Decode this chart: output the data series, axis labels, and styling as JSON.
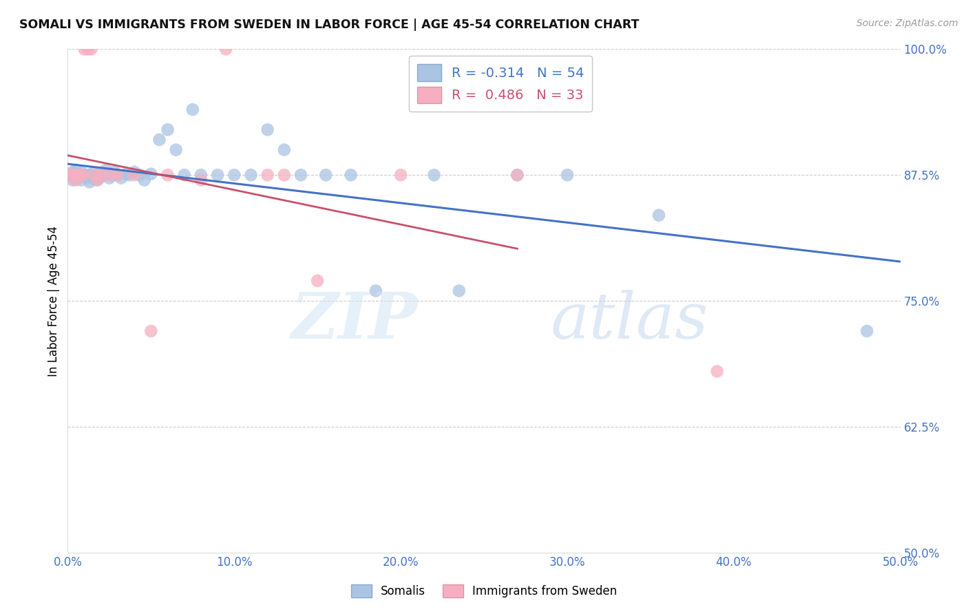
{
  "title": "SOMALI VS IMMIGRANTS FROM SWEDEN IN LABOR FORCE | AGE 45-54 CORRELATION CHART",
  "source": "Source: ZipAtlas.com",
  "ylabel": "In Labor Force | Age 45-54",
  "xlabel_ticks": [
    "0.0%",
    "10.0%",
    "20.0%",
    "30.0%",
    "40.0%",
    "50.0%"
  ],
  "xlabel_vals": [
    0.0,
    0.1,
    0.2,
    0.3,
    0.4,
    0.5
  ],
  "ylabel_ticks": [
    "50.0%",
    "62.5%",
    "75.0%",
    "87.5%",
    "100.0%"
  ],
  "ylabel_vals": [
    0.5,
    0.625,
    0.75,
    0.875,
    1.0
  ],
  "xlim": [
    0.0,
    0.5
  ],
  "ylim": [
    0.5,
    1.0
  ],
  "somali_R": -0.314,
  "somali_N": 54,
  "sweden_R": 0.486,
  "sweden_N": 33,
  "somali_color": "#aac4e2",
  "sweden_color": "#f5afc0",
  "somali_line_color": "#4472c4",
  "sweden_line_color": "#c8506a",
  "somali_x": [
    0.001,
    0.001,
    0.003,
    0.003,
    0.004,
    0.005,
    0.006,
    0.007,
    0.008,
    0.009,
    0.01,
    0.012,
    0.013,
    0.014,
    0.015,
    0.016,
    0.017,
    0.018,
    0.019,
    0.02,
    0.022,
    0.023,
    0.025,
    0.027,
    0.028,
    0.03,
    0.032,
    0.035,
    0.037,
    0.04,
    0.043,
    0.046,
    0.05,
    0.055,
    0.06,
    0.065,
    0.07,
    0.075,
    0.08,
    0.09,
    0.1,
    0.11,
    0.12,
    0.13,
    0.14,
    0.155,
    0.17,
    0.185,
    0.22,
    0.235,
    0.27,
    0.3,
    0.355,
    0.48
  ],
  "somali_y": [
    0.875,
    0.875,
    0.87,
    0.878,
    0.872,
    0.88,
    0.876,
    0.873,
    0.87,
    0.877,
    0.875,
    0.872,
    0.868,
    0.875,
    0.877,
    0.873,
    0.87,
    0.875,
    0.872,
    0.877,
    0.875,
    0.88,
    0.872,
    0.875,
    0.878,
    0.875,
    0.872,
    0.876,
    0.875,
    0.878,
    0.875,
    0.87,
    0.876,
    0.91,
    0.92,
    0.9,
    0.875,
    0.94,
    0.875,
    0.875,
    0.875,
    0.875,
    0.92,
    0.9,
    0.875,
    0.875,
    0.875,
    0.76,
    0.875,
    0.76,
    0.875,
    0.875,
    0.835,
    0.72
  ],
  "sweden_x": [
    0.001,
    0.001,
    0.001,
    0.001,
    0.002,
    0.003,
    0.003,
    0.004,
    0.004,
    0.005,
    0.006,
    0.007,
    0.008,
    0.009,
    0.01,
    0.012,
    0.014,
    0.016,
    0.018,
    0.02,
    0.025,
    0.03,
    0.04,
    0.05,
    0.06,
    0.08,
    0.095,
    0.12,
    0.13,
    0.15,
    0.2,
    0.27,
    0.39
  ],
  "sweden_y": [
    0.875,
    0.875,
    0.875,
    0.875,
    0.875,
    0.875,
    0.875,
    0.875,
    0.875,
    0.87,
    0.875,
    0.875,
    0.875,
    0.875,
    1.0,
    1.0,
    1.0,
    0.875,
    0.87,
    0.875,
    0.875,
    0.875,
    0.875,
    0.72,
    0.875,
    0.87,
    1.0,
    0.875,
    0.875,
    0.77,
    0.875,
    0.875,
    0.68
  ]
}
